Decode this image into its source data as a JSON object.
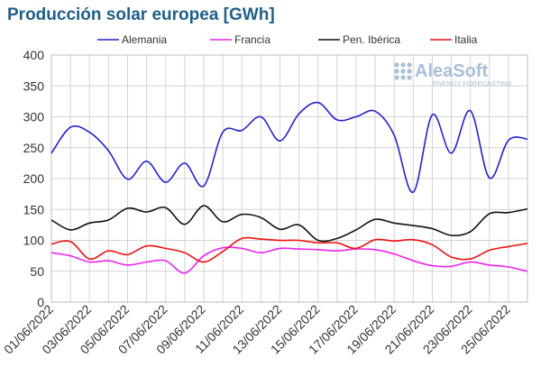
{
  "chart_data": {
    "type": "line",
    "title": "Producción solar europea [GWh]",
    "xlabel": "",
    "ylabel": "",
    "ylim": [
      0,
      400
    ],
    "yticks": [
      0,
      50,
      100,
      150,
      200,
      250,
      300,
      350,
      400
    ],
    "grid": true,
    "legend_position": "top",
    "x": [
      "01/06/2022",
      "02/06/2022",
      "03/06/2022",
      "04/06/2022",
      "05/06/2022",
      "06/06/2022",
      "07/06/2022",
      "08/06/2022",
      "09/06/2022",
      "10/06/2022",
      "11/06/2022",
      "12/06/2022",
      "13/06/2022",
      "14/06/2022",
      "15/06/2022",
      "16/06/2022",
      "17/06/2022",
      "18/06/2022",
      "19/06/2022",
      "20/06/2022",
      "21/06/2022",
      "22/06/2022",
      "23/06/2022",
      "24/06/2022",
      "25/06/2022",
      "26/06/2022"
    ],
    "xtick_labels": [
      "01/06/2022",
      "03/06/2022",
      "05/06/2022",
      "07/06/2022",
      "09/06/2022",
      "11/06/2022",
      "13/06/2022",
      "15/06/2022",
      "17/06/2022",
      "19/06/2022",
      "21/06/2022",
      "23/06/2022",
      "25/06/2022"
    ],
    "series": [
      {
        "name": "Alemania",
        "color": "#2222cc",
        "values": [
          241,
          283,
          275,
          245,
          199,
          228,
          194,
          225,
          188,
          275,
          278,
          300,
          261,
          305,
          323,
          295,
          300,
          309,
          270,
          178,
          303,
          241,
          310,
          201,
          262,
          264
        ]
      },
      {
        "name": "Francia",
        "color": "#ee22ee",
        "values": [
          80,
          75,
          65,
          67,
          60,
          65,
          67,
          47,
          75,
          88,
          87,
          80,
          87,
          86,
          85,
          83,
          86,
          85,
          78,
          67,
          59,
          58,
          65,
          60,
          57,
          50
        ]
      },
      {
        "name": "Pen. Ibérica",
        "color": "#111111",
        "values": [
          133,
          117,
          128,
          133,
          152,
          146,
          153,
          126,
          156,
          130,
          142,
          137,
          118,
          125,
          100,
          103,
          117,
          134,
          128,
          124,
          119,
          108,
          114,
          143,
          145,
          151
        ]
      },
      {
        "name": "Italia",
        "color": "#ee1111",
        "values": [
          94,
          98,
          70,
          83,
          77,
          91,
          87,
          80,
          65,
          82,
          103,
          102,
          100,
          100,
          96,
          96,
          87,
          101,
          99,
          101,
          93,
          73,
          70,
          84,
          90,
          95
        ]
      }
    ]
  },
  "watermark": {
    "brand": "AleaSoft",
    "tagline": "ENERGY FORECASTING"
  }
}
